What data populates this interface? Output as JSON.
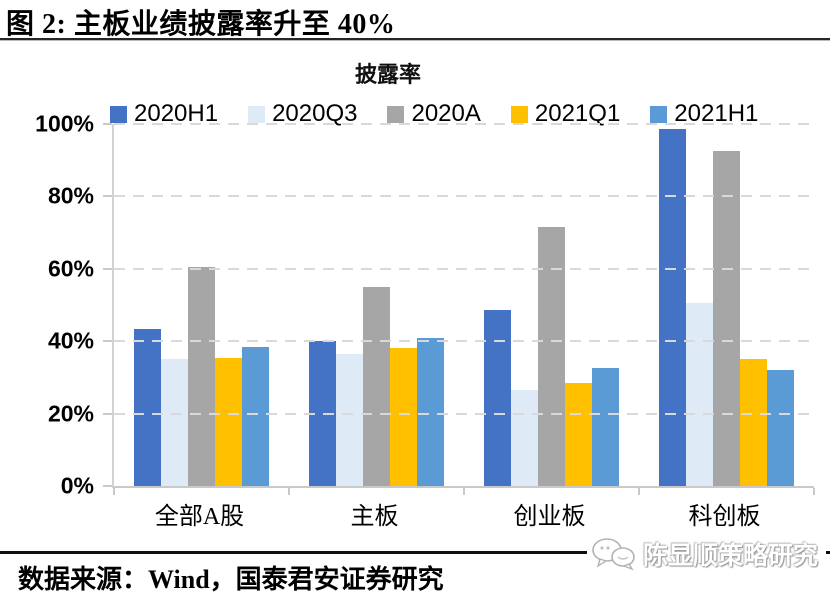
{
  "header": {
    "title": "图 2: 主板业绩披露率升至 40%"
  },
  "chart_data": {
    "type": "bar",
    "title": "披露率",
    "categories": [
      "全部A股",
      "主板",
      "创业板",
      "科创板"
    ],
    "series": [
      {
        "name": "2020H1",
        "color": "#4472C4",
        "values": [
          43.5,
          40.0,
          48.5,
          98.5
        ]
      },
      {
        "name": "2020Q3",
        "color": "#DEEAF6",
        "values": [
          35.0,
          36.5,
          26.5,
          50.5
        ]
      },
      {
        "name": "2020A",
        "color": "#A6A6A6",
        "values": [
          60.5,
          55.0,
          71.5,
          92.5
        ]
      },
      {
        "name": "2021Q1",
        "color": "#FFC000",
        "values": [
          35.5,
          38.0,
          28.5,
          35.0
        ]
      },
      {
        "name": "2021H1",
        "color": "#5B9BD5",
        "values": [
          38.5,
          41.0,
          32.5,
          32.0
        ]
      }
    ],
    "ylim": [
      0,
      100
    ],
    "yticks": [
      0,
      20,
      40,
      60,
      80,
      100
    ],
    "ytick_labels": [
      "0%",
      "20%",
      "40%",
      "60%",
      "80%",
      "100%"
    ],
    "grid": "horizontal-dashed",
    "gridline_color": "#D9D9D9",
    "legend_position": "top",
    "xlabel": "",
    "ylabel": ""
  },
  "footer": {
    "source": "数据来源：Wind，国泰君安证券研究",
    "watermark": "陈显顺策略研究"
  }
}
